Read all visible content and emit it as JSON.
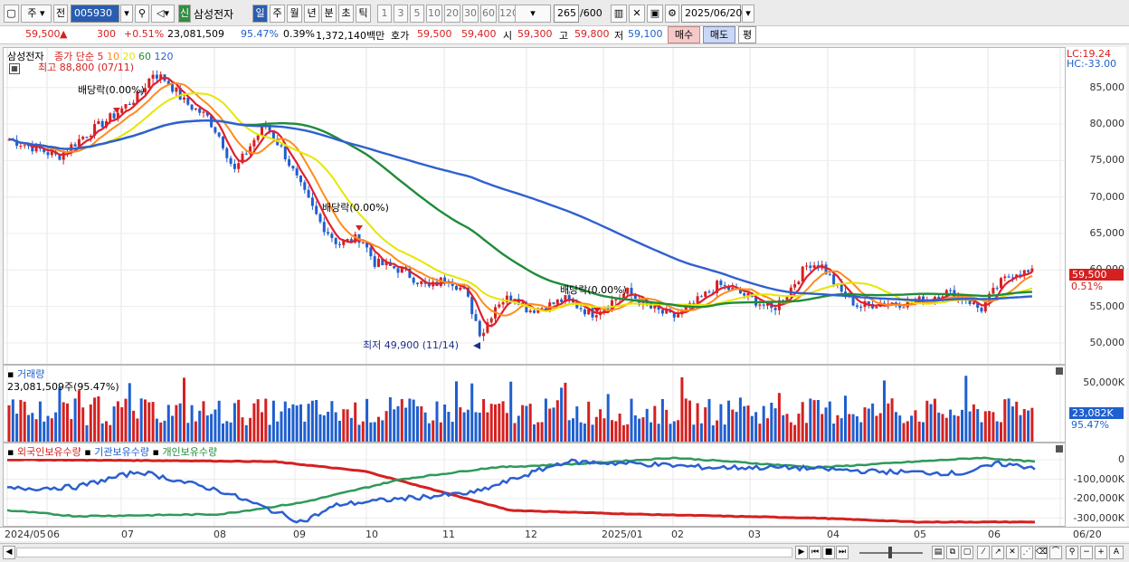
{
  "toolbar": {
    "market": "주",
    "prev_label": "전",
    "code": "005930",
    "type_badge": "신",
    "name": "삼성전자",
    "periods": [
      "일",
      "주",
      "월",
      "년",
      "분",
      "초",
      "틱"
    ],
    "minutes": [
      "1",
      "3",
      "5",
      "10",
      "20",
      "30",
      "60",
      "120"
    ],
    "count": "265",
    "count_total": "/600",
    "date": "2025/06/20"
  },
  "quote": {
    "price": "59,500",
    "change": "300",
    "change_pct": "+0.51%",
    "volume": "23,081,509",
    "vol_ratio": "95.47%",
    "turnover_pct": "0.39%",
    "amount": "1,372,140백만",
    "ask_label": "호가",
    "ask": "59,500",
    "bid": "59,400",
    "open_label": "시",
    "open": "59,300",
    "high_label": "고",
    "high": "59,800",
    "low_label": "저",
    "low": "59,100",
    "buy_label": "매수",
    "sell_label": "매도",
    "eval_label": "평"
  },
  "price_panel": {
    "stock": "삼성전자",
    "ma_title": "종가 단순",
    "ma": [
      {
        "label": "5",
        "color": "#e0202e"
      },
      {
        "label": "10",
        "color": "#ff8c1a"
      },
      {
        "label": "20",
        "color": "#e6e600"
      },
      {
        "label": "60",
        "color": "#1e8c3a"
      },
      {
        "label": "120",
        "color": "#3060d0"
      }
    ],
    "max_label": "최고 88,800 (07/11)",
    "min_label": "최저 49,900 (11/14)",
    "dividend": "배당락(0.00%)",
    "lc": "LC:19.24",
    "hc": "HC:-33.00",
    "last_price": "59,500",
    "last_pct": "0.51%",
    "ticks": [
      "85,000",
      "80,000",
      "75,000",
      "70,000",
      "65,000",
      "60,000",
      "55,000",
      "50,000"
    ]
  },
  "volume_panel": {
    "title": "거래량",
    "value": "23,081,509주(95.47%)",
    "tick": "50,000K",
    "last": "23,082K",
    "last_pct": "95.47%"
  },
  "holding_panel": {
    "foreign": "외국인보유수량",
    "inst": "기관보유수량",
    "indiv": "개인보유수량",
    "ticks": [
      "0",
      "-100,000K",
      "-200,000K",
      "-300,000K"
    ]
  },
  "dates": [
    "2024/05",
    "06",
    "07",
    "08",
    "09",
    "10",
    "11",
    "12",
    "2025/01",
    "02",
    "03",
    "04",
    "05",
    "06",
    "06/20"
  ],
  "colors": {
    "up": "#d62020",
    "down": "#1f5fcf",
    "ma5": "#e0202e",
    "ma10": "#ff8c1a",
    "ma20": "#e6e600",
    "ma60": "#1e8c3a",
    "ma120": "#3060d0"
  }
}
